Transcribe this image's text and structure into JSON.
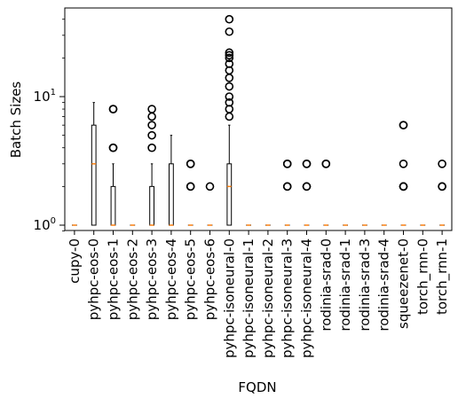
{
  "chart_data": {
    "type": "boxplot",
    "xlabel": "FQDN",
    "ylabel": "Batch Sizes",
    "yscale": "log",
    "ylim": [
      0.85,
      50
    ],
    "y_major_ticks": [
      {
        "value": 1,
        "base": "10",
        "exp": "0"
      },
      {
        "value": 10,
        "base": "10",
        "exp": "1"
      }
    ],
    "box_color": "#000000",
    "median_color": "#ff7f0e",
    "categories": [
      {
        "name": "cupy-0",
        "q1": 1,
        "median": 1,
        "q3": 1,
        "whislo": 1,
        "whishi": 1,
        "fliers": []
      },
      {
        "name": "pyhpc-eos-0",
        "q1": 1,
        "median": 3,
        "q3": 6,
        "whislo": 1,
        "whishi": 9,
        "fliers": []
      },
      {
        "name": "pyhpc-eos-1",
        "q1": 1,
        "median": 1,
        "q3": 2,
        "whislo": 1,
        "whishi": 3,
        "fliers": [
          4,
          4,
          8,
          8
        ]
      },
      {
        "name": "pyhpc-eos-2",
        "q1": 1,
        "median": 1,
        "q3": 1,
        "whislo": 1,
        "whishi": 1,
        "fliers": []
      },
      {
        "name": "pyhpc-eos-3",
        "q1": 1,
        "median": 1,
        "q3": 2,
        "whislo": 1,
        "whishi": 3,
        "fliers": [
          4,
          5,
          6,
          7,
          8
        ]
      },
      {
        "name": "pyhpc-eos-4",
        "q1": 1,
        "median": 1,
        "q3": 3,
        "whislo": 1,
        "whishi": 5,
        "fliers": []
      },
      {
        "name": "pyhpc-eos-5",
        "q1": 1,
        "median": 1,
        "q3": 1,
        "whislo": 1,
        "whishi": 1,
        "fliers": [
          2,
          2,
          3,
          3
        ]
      },
      {
        "name": "pyhpc-eos-6",
        "q1": 1,
        "median": 1,
        "q3": 1,
        "whislo": 1,
        "whishi": 1,
        "fliers": [
          2
        ]
      },
      {
        "name": "pyhpc-isoneural-0",
        "q1": 1,
        "median": 2,
        "q3": 3,
        "whislo": 1,
        "whishi": 6,
        "fliers": [
          7,
          8,
          9,
          10,
          12,
          14,
          16,
          18,
          20,
          21,
          22,
          32,
          40
        ]
      },
      {
        "name": "pyhpc-isoneural-1",
        "q1": 1,
        "median": 1,
        "q3": 1,
        "whislo": 1,
        "whishi": 1,
        "fliers": []
      },
      {
        "name": "pyhpc-isoneural-2",
        "q1": 1,
        "median": 1,
        "q3": 1,
        "whislo": 1,
        "whishi": 1,
        "fliers": []
      },
      {
        "name": "pyhpc-isoneural-3",
        "q1": 1,
        "median": 1,
        "q3": 1,
        "whislo": 1,
        "whishi": 1,
        "fliers": [
          2,
          2,
          3,
          3
        ]
      },
      {
        "name": "pyhpc-isoneural-4",
        "q1": 1,
        "median": 1,
        "q3": 1,
        "whislo": 1,
        "whishi": 1,
        "fliers": [
          2,
          2,
          3,
          3
        ]
      },
      {
        "name": "rodinia-srad-0",
        "q1": 1,
        "median": 1,
        "q3": 1,
        "whislo": 1,
        "whishi": 1,
        "fliers": [
          3,
          3
        ]
      },
      {
        "name": "rodinia-srad-1",
        "q1": 1,
        "median": 1,
        "q3": 1,
        "whislo": 1,
        "whishi": 1,
        "fliers": []
      },
      {
        "name": "rodinia-srad-3",
        "q1": 1,
        "median": 1,
        "q3": 1,
        "whislo": 1,
        "whishi": 1,
        "fliers": []
      },
      {
        "name": "rodinia-srad-4",
        "q1": 1,
        "median": 1,
        "q3": 1,
        "whislo": 1,
        "whishi": 1,
        "fliers": []
      },
      {
        "name": "squeezenet-0",
        "q1": 1,
        "median": 1,
        "q3": 1,
        "whislo": 1,
        "whishi": 1,
        "fliers": [
          2,
          2,
          2,
          3,
          6,
          6
        ]
      },
      {
        "name": "torch_rnn-0",
        "q1": 1,
        "median": 1,
        "q3": 1,
        "whislo": 1,
        "whishi": 1,
        "fliers": []
      },
      {
        "name": "torch_rnn-1",
        "q1": 1,
        "median": 1,
        "q3": 1,
        "whislo": 1,
        "whishi": 1,
        "fliers": [
          2,
          2,
          3
        ]
      }
    ]
  }
}
